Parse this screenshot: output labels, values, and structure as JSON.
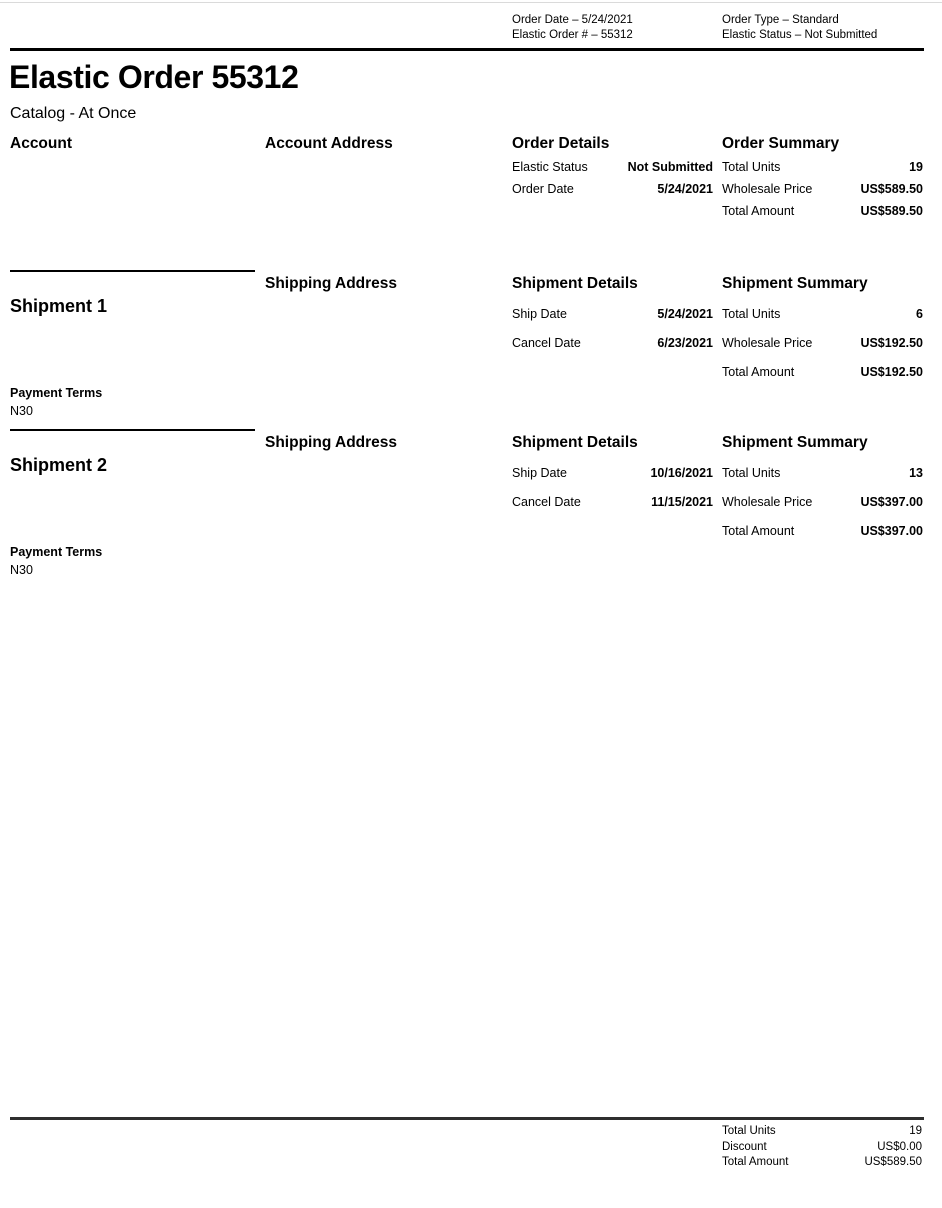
{
  "meta_header": {
    "left": [
      "Order Date – 5/24/2021",
      "Elastic Order # – 55312"
    ],
    "right": [
      "Order Type – Standard",
      "Elastic Status – Not Submitted"
    ]
  },
  "title": "Elastic Order 55312",
  "subtitle": "Catalog - At Once",
  "order": {
    "account_heading": "Account",
    "account_address_heading": "Account Address",
    "details": {
      "heading": "Order Details",
      "rows": [
        {
          "label": "Elastic Status",
          "value": "Not Submitted"
        },
        {
          "label": "Order Date",
          "value": "5/24/2021"
        }
      ]
    },
    "summary": {
      "heading": "Order Summary",
      "rows": [
        {
          "label": "Total Units",
          "value": "19"
        },
        {
          "label": "Wholesale Price",
          "value": "US$589.50"
        },
        {
          "label": "Total Amount",
          "value": "US$589.50"
        }
      ]
    }
  },
  "shipments": [
    {
      "heading": "Shipment 1",
      "shipping_address_heading": "Shipping Address",
      "details": {
        "heading": "Shipment Details",
        "rows": [
          {
            "label": "Ship Date",
            "value": "5/24/2021"
          },
          {
            "label": "Cancel Date",
            "value": "6/23/2021"
          }
        ]
      },
      "summary": {
        "heading": "Shipment Summary",
        "rows": [
          {
            "label": "Total Units",
            "value": "6"
          },
          {
            "label": "Wholesale Price",
            "value": "US$192.50"
          },
          {
            "label": "Total Amount",
            "value": "US$192.50"
          }
        ]
      },
      "payment_terms": {
        "label": "Payment Terms",
        "value": "N30"
      }
    },
    {
      "heading": "Shipment 2",
      "shipping_address_heading": "Shipping Address",
      "details": {
        "heading": "Shipment Details",
        "rows": [
          {
            "label": "Ship Date",
            "value": "10/16/2021"
          },
          {
            "label": "Cancel Date",
            "value": "11/15/2021"
          }
        ]
      },
      "summary": {
        "heading": "Shipment Summary",
        "rows": [
          {
            "label": "Total Units",
            "value": "13"
          },
          {
            "label": "Wholesale Price",
            "value": "US$397.00"
          },
          {
            "label": "Total Amount",
            "value": "US$397.00"
          }
        ]
      },
      "payment_terms": {
        "label": "Payment Terms",
        "value": "N30"
      }
    }
  ],
  "footer_totals": {
    "rows": [
      {
        "label": "Total Units",
        "value": "19"
      },
      {
        "label": "Discount",
        "value": "US$0.00"
      },
      {
        "label": "Total Amount",
        "value": "US$589.50"
      }
    ]
  }
}
